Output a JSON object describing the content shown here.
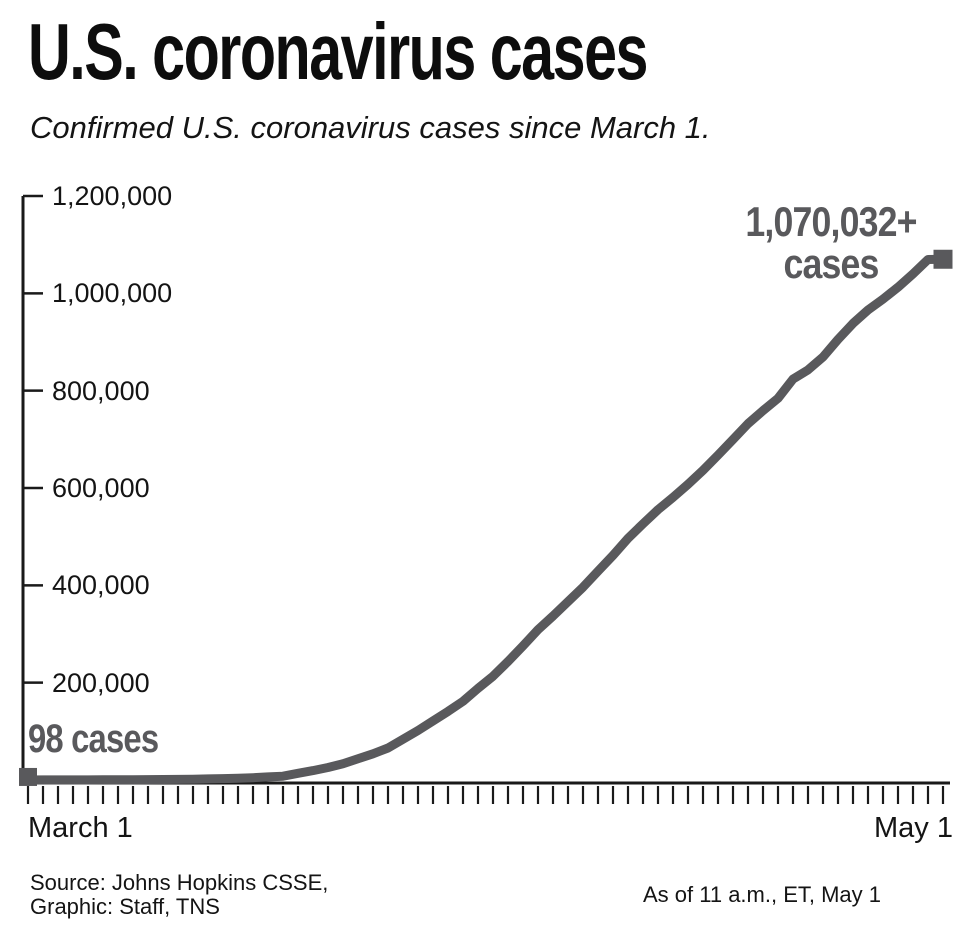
{
  "header": {
    "title": "U.S. coronavirus cases",
    "subtitle": "Confirmed U.S. coronavirus cases since March 1."
  },
  "chart_data": {
    "type": "line",
    "title": "U.S. coronavirus cases",
    "xlabel": "",
    "ylabel": "",
    "x_start_label": "March 1",
    "x_end_label": "May 1",
    "x_interval": "daily",
    "ylim": [
      0,
      1200000
    ],
    "grid": false,
    "legend": "none",
    "y_ticks": [
      1200000,
      1000000,
      800000,
      600000,
      400000,
      200000
    ],
    "y_tick_labels": [
      "1,200,000",
      "1,000,000",
      "800,000",
      "600,000",
      "400,000",
      "200,000"
    ],
    "line_color": "#59595c",
    "axis_color": "#1a1a1a",
    "start_annotation": "98 cases",
    "end_annotation_line1": "1,070,032+",
    "end_annotation_line2": "cases",
    "series": [
      {
        "name": "Confirmed U.S. coronavirus cases",
        "values": [
          98,
          122,
          153,
          211,
          262,
          330,
          444,
          564,
          728,
          1000,
          1267,
          1645,
          2204,
          2826,
          3505,
          4632,
          6421,
          7783,
          13747,
          19273,
          25600,
          33276,
          43847,
          53740,
          65778,
          83836,
          101657,
          121478,
          140886,
          161807,
          188172,
          213372,
          243453,
          275586,
          308850,
          337072,
          366667,
          396223,
          429052,
          461437,
          496535,
          526396,
          555313,
          580619,
          607670,
          636350,
          667592,
          699706,
          732197,
          759086,
          784326,
          823786,
          842629,
          869170,
          905358,
          938154,
          965785,
          988197,
          1012583,
          1039909,
          1069424,
          1070032
        ]
      }
    ]
  },
  "footer": {
    "source_line1": "Source: Johns Hopkins CSSE,",
    "source_line2": "Graphic: Staff, TNS",
    "as_of": "As of 11 a.m., ET, May 1"
  }
}
